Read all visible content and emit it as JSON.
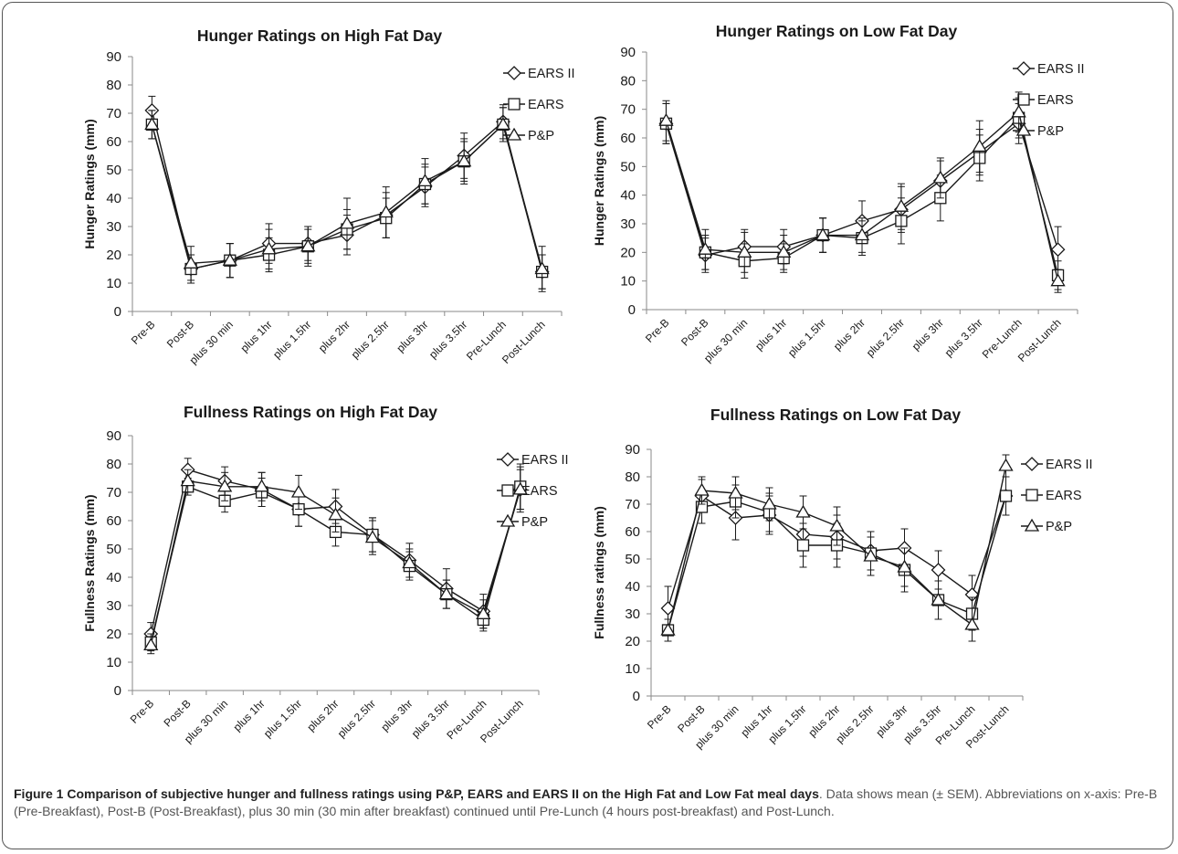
{
  "figure": {
    "caption_title": "Figure 1 Comparison of subjective hunger and fullness ratings using P&P, EARS and EARS II on the High Fat and Low Fat meal days",
    "caption_body": ". Data shows mean (± SEM). Abbreviations on x-axis: Pre-B (Pre-Breakfast), Post-B (Post-Breakfast), plus 30 min (30 min after breakfast) continued until Pre-Lunch (4 hours post-breakfast) and Post-Lunch."
  },
  "chart_data": [
    {
      "type": "line",
      "title": "Hunger Ratings on High Fat Day",
      "ylabel": "Hunger Ratings (mm)",
      "xlabel": "",
      "ylim": [
        0,
        90
      ],
      "yticks": [
        0,
        10,
        20,
        30,
        40,
        50,
        60,
        70,
        80,
        90
      ],
      "categories": [
        "Pre-B",
        "Post-B",
        "plus 30 min",
        "plus 1hr",
        "plus 1.5hr",
        "plus 2hr",
        "plus 2.5hr",
        "plus 3hr",
        "plus 3.5hr",
        "Pre-Lunch",
        "Post-Lunch"
      ],
      "legend": "right",
      "series": [
        {
          "name": "EARS II",
          "marker": "diamond",
          "values": [
            71,
            15,
            18,
            24,
            24,
            27,
            34,
            44,
            55,
            67,
            14
          ],
          "sem": [
            5,
            5,
            6,
            7,
            6,
            7,
            8,
            7,
            8,
            6,
            6
          ]
        },
        {
          "name": "EARS",
          "marker": "square",
          "values": [
            66,
            15,
            18,
            20,
            23,
            29,
            33,
            45,
            53,
            66,
            14
          ],
          "sem": [
            5,
            5,
            6,
            6,
            6,
            7,
            7,
            7,
            7,
            6,
            6
          ]
        },
        {
          "name": "P&P",
          "marker": "triangle",
          "values": [
            66,
            17,
            18,
            22,
            23,
            31,
            35,
            46,
            53,
            66,
            15
          ],
          "sem": [
            5,
            6,
            6,
            7,
            7,
            9,
            9,
            8,
            8,
            6,
            8
          ]
        }
      ]
    },
    {
      "type": "line",
      "title": "Hunger Ratings on Low Fat Day",
      "ylabel": "Hunger Ratings (mm)",
      "xlabel": "",
      "ylim": [
        0,
        90
      ],
      "yticks": [
        0,
        10,
        20,
        30,
        40,
        50,
        60,
        70,
        80,
        90
      ],
      "categories": [
        "Pre-B",
        "Post-B",
        "plus 30 min",
        "plus 1hr",
        "plus 1.5hr",
        "plus 2hr",
        "plus 2.5hr",
        "plus 3hr",
        "plus 3.5hr",
        "Pre-Lunch",
        "Post-Lunch"
      ],
      "legend": "right",
      "series": [
        {
          "name": "EARS II",
          "marker": "diamond",
          "values": [
            65,
            19,
            22,
            22,
            26,
            31,
            35,
            45,
            55,
            65,
            21
          ],
          "sem": [
            7,
            6,
            6,
            6,
            6,
            7,
            8,
            7,
            8,
            7,
            8
          ]
        },
        {
          "name": "EARS",
          "marker": "square",
          "values": [
            65,
            20,
            17,
            18,
            26,
            25,
            31,
            39,
            53,
            67,
            12
          ],
          "sem": [
            7,
            6,
            6,
            5,
            6,
            6,
            8,
            8,
            8,
            7,
            5
          ]
        },
        {
          "name": "P&P",
          "marker": "triangle",
          "values": [
            66,
            21,
            20,
            20,
            26,
            26,
            36,
            46,
            57,
            69,
            10
          ],
          "sem": [
            7,
            7,
            7,
            6,
            6,
            6,
            8,
            7,
            9,
            7,
            4
          ]
        }
      ]
    },
    {
      "type": "line",
      "title": "Fullness Ratings on High Fat Day",
      "ylabel": "Fullness Ratings (mm)",
      "xlabel": "",
      "ylim": [
        0,
        90
      ],
      "yticks": [
        0,
        10,
        20,
        30,
        40,
        50,
        60,
        70,
        80,
        90
      ],
      "categories": [
        "Pre-B",
        "Post-B",
        "plus 30 min",
        "plus 1hr",
        "plus 1.5hr",
        "plus 2hr",
        "plus 2.5hr",
        "plus 3hr",
        "plus 3.5hr",
        "Pre-Lunch",
        "Post-Lunch"
      ],
      "legend": "right",
      "series": [
        {
          "name": "EARS II",
          "marker": "diamond",
          "values": [
            20,
            78,
            74,
            71,
            64,
            65,
            55,
            46,
            36,
            28,
            71
          ],
          "sem": [
            4,
            4,
            5,
            6,
            6,
            6,
            6,
            6,
            7,
            6,
            8
          ]
        },
        {
          "name": "EARS",
          "marker": "square",
          "values": [
            17,
            72,
            67,
            70,
            64,
            56,
            55,
            44,
            34,
            25,
            72
          ],
          "sem": [
            3,
            3,
            4,
            5,
            6,
            5,
            6,
            5,
            5,
            4,
            8
          ]
        },
        {
          "name": "P&P",
          "marker": "triangle",
          "values": [
            16,
            74,
            72,
            72,
            70,
            62,
            54,
            45,
            34,
            27,
            71
          ],
          "sem": [
            3,
            4,
            5,
            5,
            6,
            6,
            6,
            5,
            5,
            5,
            7
          ]
        }
      ]
    },
    {
      "type": "line",
      "title": "Fullness Ratings on Low Fat Day",
      "ylabel": "Fullness ratings (mm)",
      "xlabel": "",
      "ylim": [
        0,
        90
      ],
      "yticks": [
        0,
        10,
        20,
        30,
        40,
        50,
        60,
        70,
        80,
        90
      ],
      "categories": [
        "Pre-B",
        "Post-B",
        "plus 30 min",
        "plus 1hr",
        "plus 1.5hr",
        "plus 2hr",
        "plus 2.5hr",
        "plus 3hr",
        "plus 3.5hr",
        "Pre-Lunch",
        "Post-Lunch"
      ],
      "legend": "right",
      "series": [
        {
          "name": "EARS II",
          "marker": "diamond",
          "values": [
            32,
            73,
            65,
            66,
            59,
            58,
            53,
            54,
            46,
            37,
            73
          ],
          "sem": [
            8,
            6,
            8,
            7,
            8,
            8,
            7,
            7,
            7,
            7,
            7
          ]
        },
        {
          "name": "EARS",
          "marker": "square",
          "values": [
            24,
            69,
            71,
            67,
            55,
            55,
            52,
            46,
            35,
            30,
            73
          ],
          "sem": [
            4,
            6,
            6,
            7,
            8,
            8,
            8,
            8,
            7,
            6,
            7
          ]
        },
        {
          "name": "P&P",
          "marker": "triangle",
          "values": [
            24,
            75,
            74,
            70,
            67,
            62,
            51,
            47,
            35,
            26,
            84
          ],
          "sem": [
            4,
            5,
            6,
            6,
            6,
            7,
            7,
            7,
            7,
            6,
            4
          ]
        }
      ]
    }
  ]
}
